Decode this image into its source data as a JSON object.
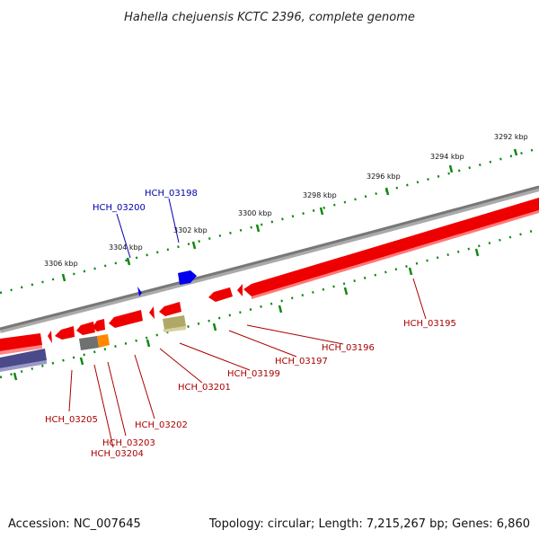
{
  "title": "Hahella chejuensis KCTC 2396, complete genome",
  "footer": {
    "accession": "Accession: NC_007645",
    "topology": "Topology: circular; Length: 7,215,267 bp; Genes: 6,860"
  },
  "scale_labels": [
    "3292 kbp",
    "3294 kbp",
    "3296 kbp",
    "3298 kbp",
    "3300 kbp",
    "3302 kbp",
    "3304 kbp",
    "3306 kbp"
  ],
  "genes_blue": [
    "HCH_03198",
    "HCH_03200"
  ],
  "genes_red": [
    "HCH_03195",
    "HCH_03196",
    "HCH_03197",
    "HCH_03199",
    "HCH_03201",
    "HCH_03202",
    "HCH_03203",
    "HCH_03204",
    "HCH_03205"
  ],
  "colors": {
    "forward_strand": "#0000ee",
    "reverse_strand": "#ee0000",
    "backbone": "#888888",
    "tick": "#118811",
    "label_blue": "#0000aa",
    "label_red": "#aa0000",
    "feature_gray": "#707070",
    "feature_orange": "#ff8800",
    "feature_olive": "#b0a866",
    "feature_navy": "#4a4a8a"
  }
}
